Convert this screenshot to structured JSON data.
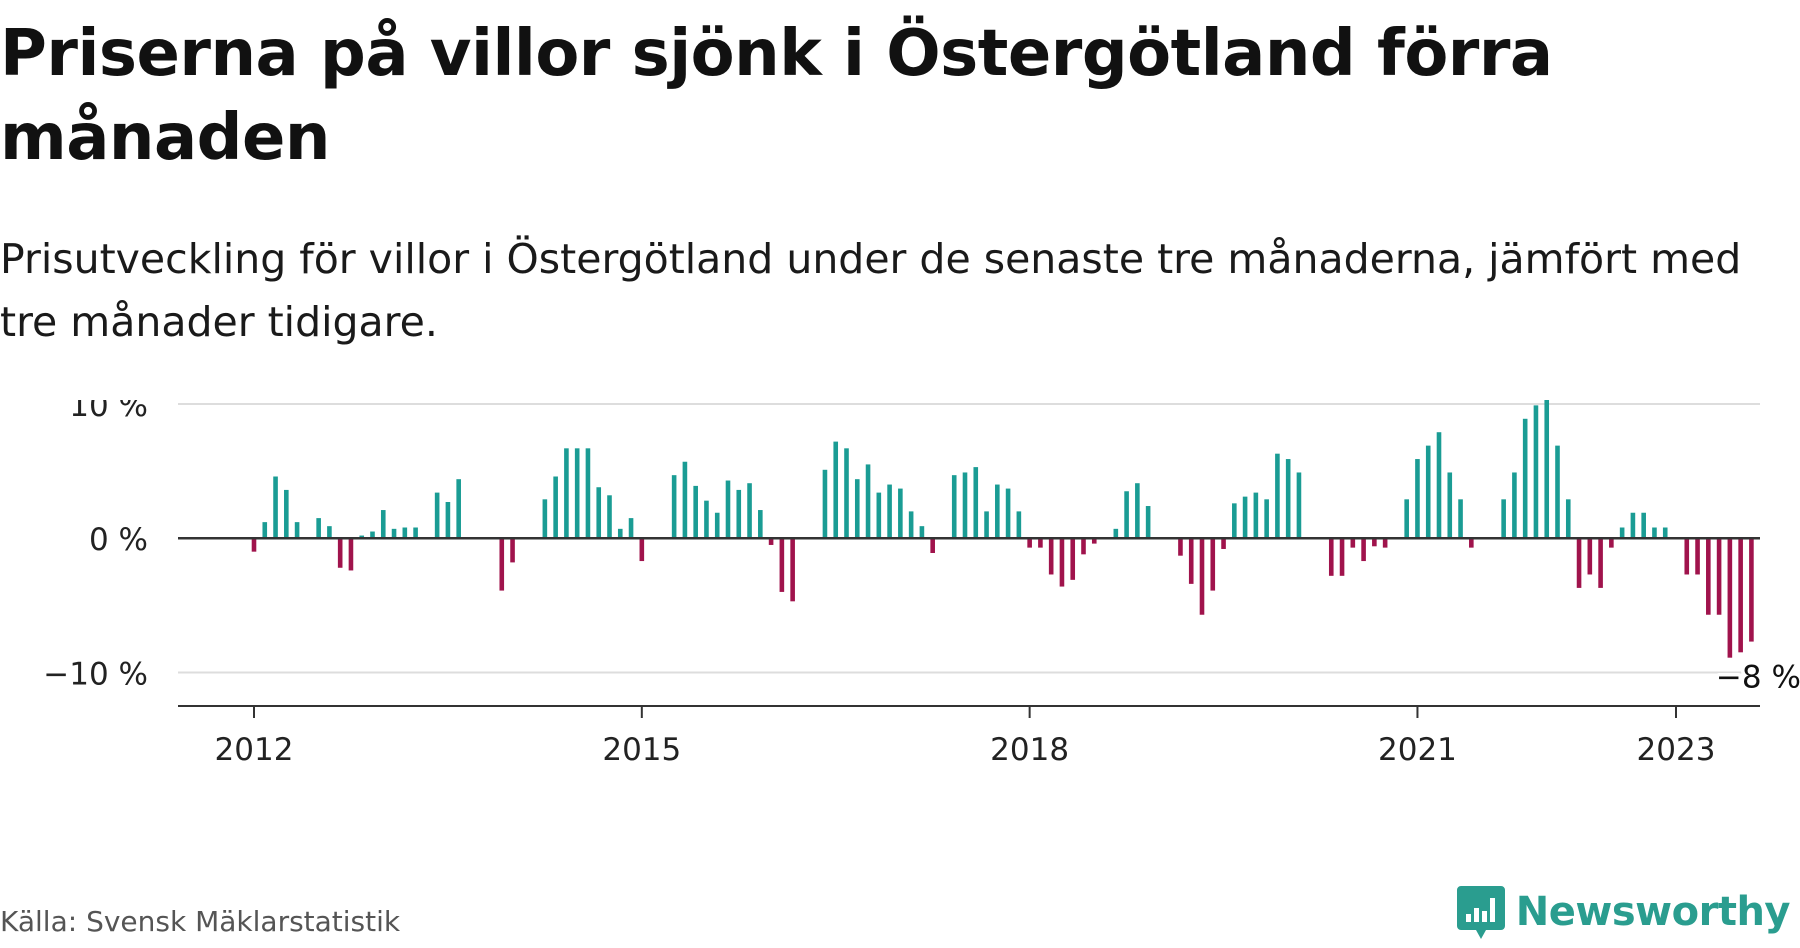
{
  "header": {
    "title": "Priserna på villor sjönk i Östergötland förra månaden",
    "subtitle": "Prisutveckling för villor i Östergötland under de senaste tre månaderna, jämfört med tre månader tidigare."
  },
  "footer": {
    "source": "Källa: Svensk Mäklarstatistik",
    "brand": "Newsworthy"
  },
  "colors": {
    "positive": "#1a9c94",
    "negative": "#a0134c",
    "brand": "#2a9d8f",
    "grid": "#dddddd",
    "baseline": "#333333"
  },
  "chart_data": {
    "type": "bar",
    "start_date": "2012-01",
    "y_ticks": [
      {
        "value": 10,
        "label": "10 %"
      },
      {
        "value": 0,
        "label": "0 %"
      },
      {
        "value": -10,
        "label": "−10 %"
      }
    ],
    "x_ticks": [
      {
        "date": "2012-01",
        "label": "2012"
      },
      {
        "date": "2015-01",
        "label": "2015"
      },
      {
        "date": "2018-01",
        "label": "2018"
      },
      {
        "date": "2021-01",
        "label": "2021"
      },
      {
        "date": "2023-01",
        "label": "2023"
      }
    ],
    "ylim": [
      -12.5,
      10.3
    ],
    "grid": true,
    "last_label": "−8 %",
    "values": [
      -1.0,
      1.2,
      4.6,
      3.6,
      1.2,
      0,
      1.5,
      0.9,
      -2.2,
      -2.4,
      0.2,
      0.5,
      2.1,
      0.7,
      0.8,
      0.8,
      0,
      3.4,
      2.7,
      4.4,
      0,
      0,
      0,
      -3.9,
      -1.8,
      0,
      0,
      2.9,
      4.6,
      6.7,
      6.7,
      6.7,
      3.8,
      3.2,
      0.7,
      1.5,
      -1.7,
      0,
      0,
      4.7,
      5.7,
      3.9,
      2.8,
      1.9,
      4.3,
      3.6,
      4.1,
      2.1,
      -0.5,
      -4.0,
      -4.7,
      0,
      0,
      5.1,
      7.2,
      6.7,
      4.4,
      5.5,
      3.4,
      4.0,
      3.7,
      2.0,
      0.9,
      -1.1,
      0,
      4.7,
      4.9,
      5.3,
      2.0,
      4.0,
      3.7,
      2.0,
      -0.7,
      -0.7,
      -2.7,
      -3.6,
      -3.1,
      -1.2,
      -0.4,
      0,
      0.7,
      3.5,
      4.1,
      2.4,
      0,
      0,
      -1.3,
      -3.4,
      -5.7,
      -3.9,
      -0.8,
      2.6,
      3.1,
      3.4,
      2.9,
      6.3,
      5.9,
      4.9,
      0,
      0,
      -2.8,
      -2.8,
      -0.7,
      -1.7,
      -0.6,
      -0.7,
      0,
      2.9,
      5.9,
      6.9,
      7.9,
      4.9,
      2.9,
      -0.7,
      0,
      0,
      2.9,
      4.9,
      8.9,
      9.9,
      10.9,
      6.9,
      2.9,
      -3.7,
      -2.7,
      -3.7,
      -0.7,
      0.8,
      1.9,
      1.9,
      0.8,
      0.8,
      0,
      -2.7,
      -2.7,
      -5.7,
      -5.7,
      -8.9,
      -8.5,
      -7.7
    ]
  }
}
